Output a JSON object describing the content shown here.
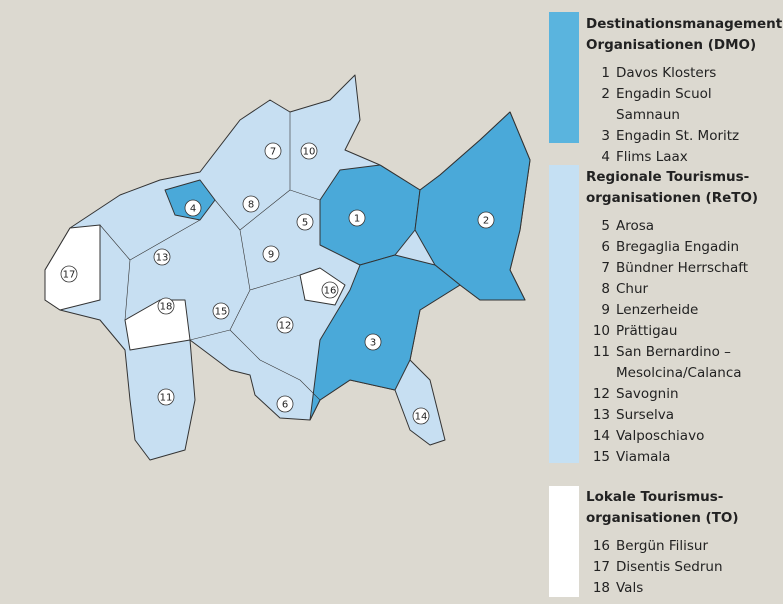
{
  "legend": {
    "groups": [
      {
        "title_lines": [
          "Destinationsmanagement-",
          "Organisationen (DMO)"
        ],
        "items": [
          {
            "number": "1",
            "name": "Davos Klosters"
          },
          {
            "number": "2",
            "name": "Engadin Scuol Samnaun"
          },
          {
            "number": "3",
            "name": "Engadin St. Moritz"
          },
          {
            "number": "4",
            "name": "Flims Laax"
          }
        ]
      },
      {
        "title_lines": [
          "Regionale Tourismus-",
          "organisationen (ReTO)"
        ],
        "items": [
          {
            "number": "5",
            "name": "Arosa"
          },
          {
            "number": "6",
            "name": "Bregaglia Engadin"
          },
          {
            "number": "7",
            "name": "Bündner Herrschaft"
          },
          {
            "number": "8",
            "name": "Chur"
          },
          {
            "number": "9",
            "name": "Lenzerheide"
          },
          {
            "number": "10",
            "name": "Prättigau"
          },
          {
            "number": "11",
            "name": "San Bernardino – Mesolcina/Calanca"
          },
          {
            "number": "12",
            "name": "Savognin"
          },
          {
            "number": "13",
            "name": "Surselva"
          },
          {
            "number": "14",
            "name": "Valposchiavo"
          },
          {
            "number": "15",
            "name": "Viamala"
          }
        ]
      },
      {
        "title_lines": [
          "Lokale Tourismus-",
          "organisationen (TO)"
        ],
        "items": [
          {
            "number": "16",
            "name": "Bergün Filisur"
          },
          {
            "number": "17",
            "name": "Disentis Sedrun"
          },
          {
            "number": "18",
            "name": "Vals"
          }
        ]
      }
    ]
  }
}
